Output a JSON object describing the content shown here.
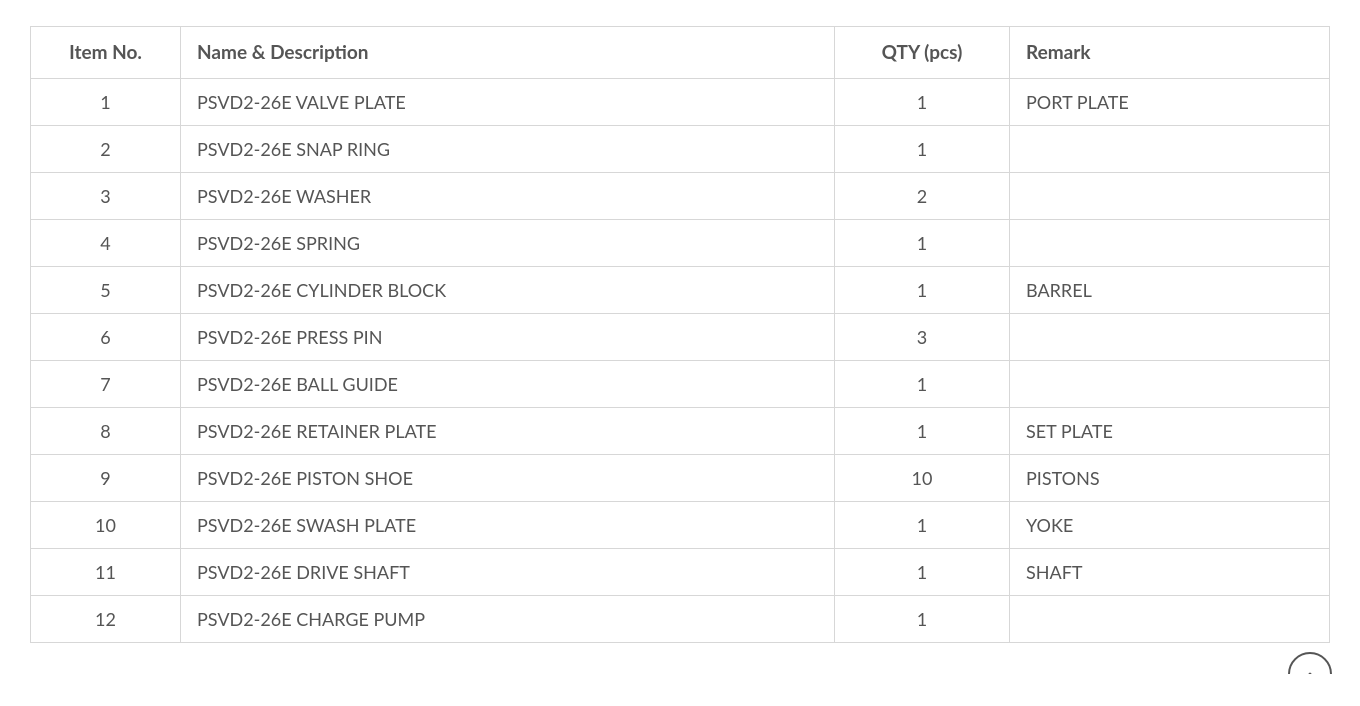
{
  "table": {
    "columns": [
      {
        "key": "item_no",
        "label": "Item No.",
        "class": "col-item-no"
      },
      {
        "key": "name",
        "label": "Name & Description",
        "class": "col-name"
      },
      {
        "key": "qty",
        "label": "QTY (pcs)",
        "class": "col-qty"
      },
      {
        "key": "remark",
        "label": "Remark",
        "class": "col-remark"
      }
    ],
    "rows": [
      {
        "item_no": "1",
        "name": "PSVD2-26E VALVE PLATE",
        "qty": "1",
        "remark": "PORT PLATE"
      },
      {
        "item_no": "2",
        "name": "PSVD2-26E SNAP RING",
        "qty": "1",
        "remark": ""
      },
      {
        "item_no": "3",
        "name": "PSVD2-26E WASHER",
        "qty": "2",
        "remark": ""
      },
      {
        "item_no": "4",
        "name": "PSVD2-26E SPRING",
        "qty": "1",
        "remark": ""
      },
      {
        "item_no": "5",
        "name": "PSVD2-26E CYLINDER BLOCK",
        "qty": "1",
        "remark": "BARREL"
      },
      {
        "item_no": "6",
        "name": "PSVD2-26E PRESS PIN",
        "qty": "3",
        "remark": ""
      },
      {
        "item_no": "7",
        "name": "PSVD2-26E BALL GUIDE",
        "qty": "1",
        "remark": ""
      },
      {
        "item_no": "8",
        "name": "PSVD2-26E RETAINER PLATE",
        "qty": "1",
        "remark": "SET PLATE"
      },
      {
        "item_no": "9",
        "name": "PSVD2-26E PISTON SHOE",
        "qty": "10",
        "remark": "PISTONS"
      },
      {
        "item_no": "10",
        "name": "PSVD2-26E SWASH PLATE",
        "qty": "1",
        "remark": "YOKE"
      },
      {
        "item_no": "11",
        "name": "PSVD2-26E DRIVE SHAFT",
        "qty": "1",
        "remark": "SHAFT"
      },
      {
        "item_no": "12",
        "name": "PSVD2-26E CHARGE PUMP",
        "qty": "1",
        "remark": ""
      }
    ],
    "border_color": "#d7d7d7",
    "text_color": "#555555",
    "header_fontsize": 19,
    "cell_fontsize": 18,
    "background_color": "#ffffff"
  },
  "scroll_button": {
    "border_color": "#555555",
    "icon_color": "#555555"
  }
}
